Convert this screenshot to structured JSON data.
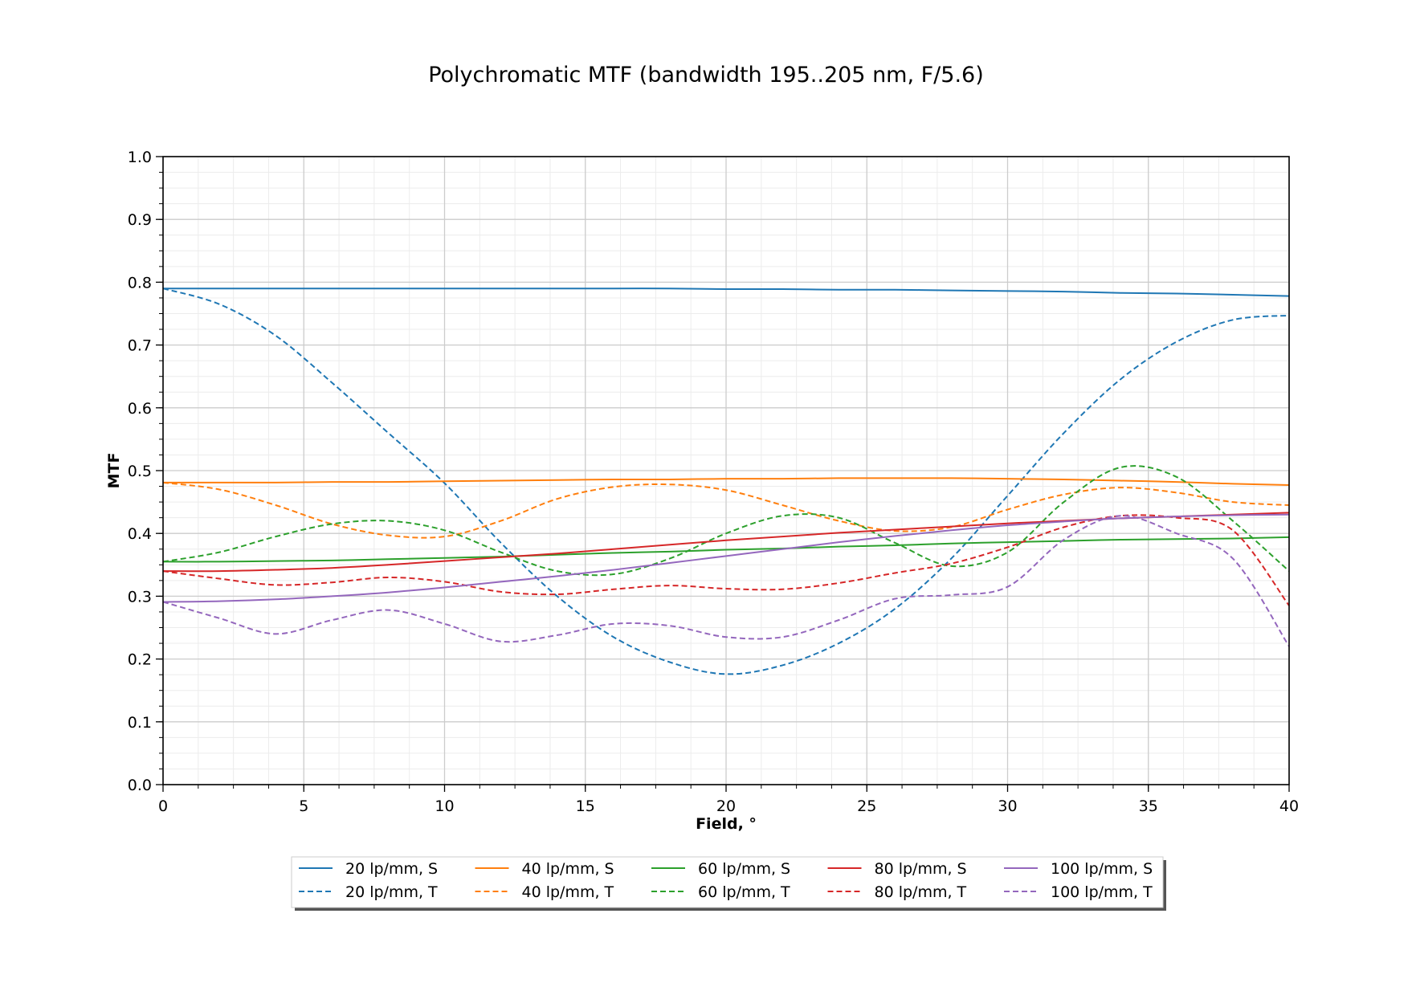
{
  "chart_data": {
    "type": "line",
    "title": "Polychromatic MTF (bandwidth 195..205 nm, F/5.6)",
    "xlabel": "Field, °",
    "ylabel": "MTF",
    "xlim": [
      0,
      40
    ],
    "ylim": [
      0.0,
      1.0
    ],
    "xticks": [
      "0",
      "5",
      "10",
      "15",
      "20",
      "25",
      "30",
      "35",
      "40"
    ],
    "yticks": [
      "0.0",
      "0.1",
      "0.2",
      "0.3",
      "0.4",
      "0.5",
      "0.6",
      "0.7",
      "0.8",
      "0.9",
      "1.0"
    ],
    "grid": true,
    "legend": "bottom-center",
    "x": [
      0,
      2,
      4,
      6,
      8,
      10,
      12,
      14,
      16,
      18,
      20,
      22,
      24,
      26,
      28,
      30,
      32,
      34,
      36,
      38,
      40
    ],
    "series": [
      {
        "name": "20 lp/mm, S",
        "color": "#1f77b4",
        "style": "solid",
        "values": [
          0.79,
          0.79,
          0.79,
          0.79,
          0.79,
          0.79,
          0.79,
          0.79,
          0.79,
          0.79,
          0.789,
          0.789,
          0.788,
          0.788,
          0.787,
          0.786,
          0.785,
          0.783,
          0.782,
          0.78,
          0.778
        ]
      },
      {
        "name": "20 lp/mm, T",
        "color": "#1f77b4",
        "style": "dashed",
        "values": [
          0.79,
          0.765,
          0.715,
          0.64,
          0.56,
          0.48,
          0.385,
          0.3,
          0.235,
          0.195,
          0.176,
          0.19,
          0.225,
          0.28,
          0.36,
          0.46,
          0.56,
          0.645,
          0.705,
          0.74,
          0.747
        ]
      },
      {
        "name": "40 lp/mm, S",
        "color": "#ff7f0e",
        "style": "solid",
        "values": [
          0.481,
          0.481,
          0.481,
          0.482,
          0.482,
          0.483,
          0.484,
          0.485,
          0.486,
          0.486,
          0.487,
          0.487,
          0.488,
          0.488,
          0.488,
          0.487,
          0.486,
          0.484,
          0.482,
          0.479,
          0.477
        ]
      },
      {
        "name": "40 lp/mm, T",
        "color": "#ff7f0e",
        "style": "dashed",
        "values": [
          0.481,
          0.47,
          0.445,
          0.415,
          0.397,
          0.395,
          0.42,
          0.455,
          0.474,
          0.478,
          0.469,
          0.445,
          0.42,
          0.404,
          0.41,
          0.438,
          0.462,
          0.473,
          0.465,
          0.45,
          0.445
        ]
      },
      {
        "name": "60 lp/mm, S",
        "color": "#2ca02c",
        "style": "solid",
        "values": [
          0.355,
          0.355,
          0.356,
          0.357,
          0.359,
          0.361,
          0.363,
          0.366,
          0.369,
          0.371,
          0.374,
          0.376,
          0.379,
          0.381,
          0.384,
          0.386,
          0.388,
          0.39,
          0.391,
          0.392,
          0.394
        ]
      },
      {
        "name": "60 lp/mm, T",
        "color": "#2ca02c",
        "style": "dashed",
        "values": [
          0.355,
          0.37,
          0.395,
          0.415,
          0.42,
          0.405,
          0.37,
          0.34,
          0.335,
          0.36,
          0.4,
          0.428,
          0.425,
          0.385,
          0.348,
          0.37,
          0.45,
          0.505,
          0.49,
          0.42,
          0.34
        ]
      },
      {
        "name": "80 lp/mm, S",
        "color": "#d62728",
        "style": "solid",
        "values": [
          0.34,
          0.34,
          0.342,
          0.345,
          0.35,
          0.356,
          0.362,
          0.368,
          0.375,
          0.382,
          0.389,
          0.395,
          0.401,
          0.406,
          0.411,
          0.416,
          0.42,
          0.424,
          0.427,
          0.43,
          0.433
        ]
      },
      {
        "name": "80 lp/mm, T",
        "color": "#d62728",
        "style": "dashed",
        "values": [
          0.34,
          0.328,
          0.318,
          0.322,
          0.33,
          0.323,
          0.307,
          0.303,
          0.311,
          0.317,
          0.312,
          0.311,
          0.321,
          0.337,
          0.352,
          0.378,
          0.41,
          0.428,
          0.425,
          0.405,
          0.285
        ]
      },
      {
        "name": "100 lp/mm, S",
        "color": "#9467bd",
        "style": "solid",
        "values": [
          0.291,
          0.292,
          0.295,
          0.3,
          0.306,
          0.314,
          0.323,
          0.332,
          0.342,
          0.353,
          0.364,
          0.375,
          0.386,
          0.396,
          0.405,
          0.413,
          0.419,
          0.424,
          0.427,
          0.429,
          0.43
        ]
      },
      {
        "name": "100 lp/mm, T",
        "color": "#9467bd",
        "style": "dashed",
        "values": [
          0.291,
          0.265,
          0.24,
          0.262,
          0.278,
          0.256,
          0.228,
          0.238,
          0.256,
          0.253,
          0.235,
          0.235,
          0.262,
          0.296,
          0.302,
          0.315,
          0.39,
          0.428,
          0.4,
          0.36,
          0.22
        ]
      }
    ]
  }
}
